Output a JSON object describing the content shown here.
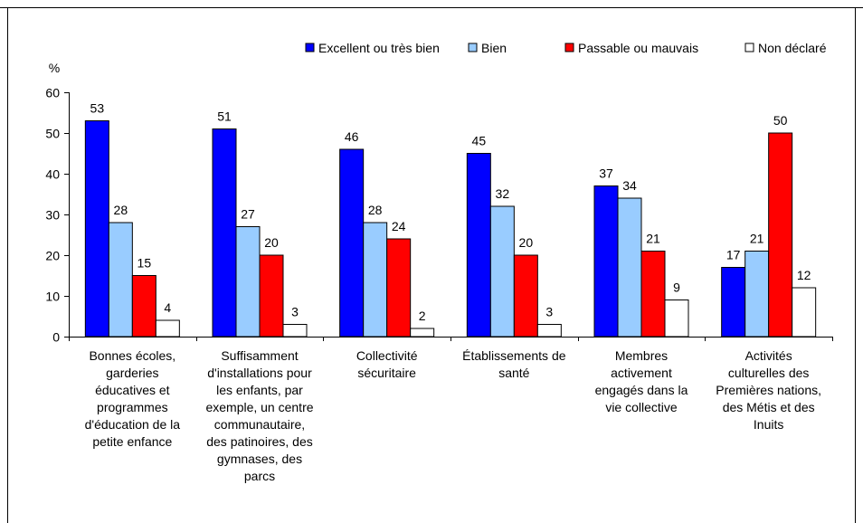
{
  "chart_data": {
    "type": "bar",
    "ylabel": "%",
    "ylim": [
      0,
      60
    ],
    "yticks": [
      0,
      10,
      20,
      30,
      40,
      50,
      60
    ],
    "grid": false,
    "legend_position": "top-right",
    "categories": [
      [
        "Bonnes écoles,",
        "garderies",
        "éducatives et",
        "programmes",
        "d'éducation de la",
        "petite enfance"
      ],
      [
        "Suffisamment",
        "d'installations pour",
        "les enfants, par",
        "exemple, un centre",
        "communautaire,",
        "des patinoires, des",
        "gymnases, des",
        "parcs"
      ],
      [
        "Collectivité",
        "sécuritaire"
      ],
      [
        "Établissements de",
        "santé"
      ],
      [
        "Membres",
        "activement",
        "engagés dans la",
        "vie collective"
      ],
      [
        "Activités",
        "culturelles des",
        "Premières nations,",
        "des Métis et des",
        "Inuits"
      ]
    ],
    "series": [
      {
        "name": "Excellent ou très bien",
        "color": "#0000ff",
        "values": [
          53,
          51,
          46,
          45,
          37,
          17
        ]
      },
      {
        "name": "Bien",
        "color": "#99ccff",
        "values": [
          28,
          27,
          28,
          32,
          34,
          21
        ]
      },
      {
        "name": "Passable ou mauvais",
        "color": "#ff0000",
        "values": [
          15,
          20,
          24,
          20,
          21,
          50
        ]
      },
      {
        "name": "Non déclaré",
        "color": "#ffffff",
        "values": [
          4,
          3,
          2,
          3,
          9,
          12
        ]
      }
    ]
  }
}
